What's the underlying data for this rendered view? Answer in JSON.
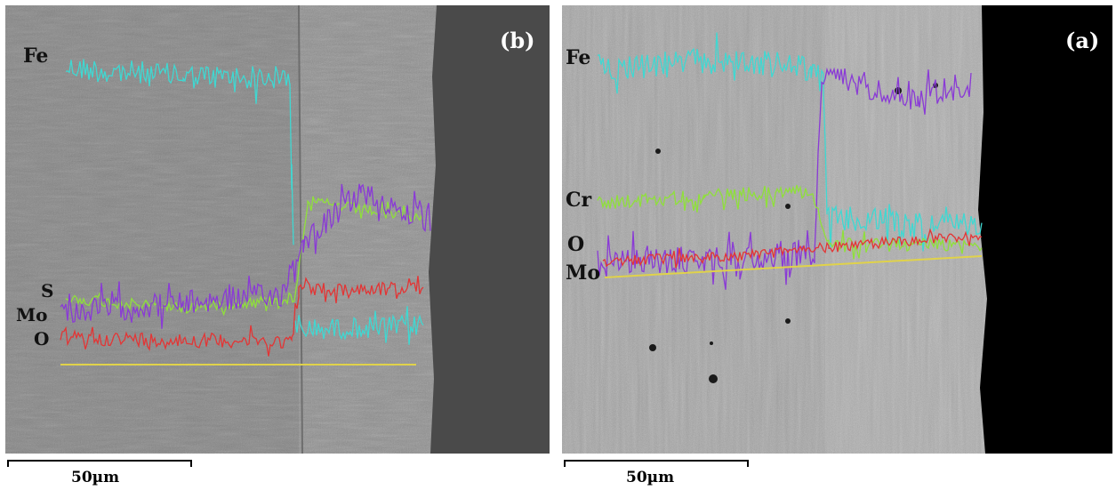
{
  "panels": {
    "b": {
      "letter": "(b)",
      "elements": {
        "fe": "Fe",
        "s": "S",
        "mo": "Mo",
        "o": "O"
      },
      "scale_label": "50µm"
    },
    "a": {
      "letter": "(a)",
      "elements": {
        "fe": "Fe",
        "cr": "Cr",
        "o": "O",
        "mo": "Mo"
      },
      "scale_label": "50µm"
    }
  },
  "colors": {
    "fe": "#3fd8d2",
    "mo": "#8a3ad6",
    "cr": "#8fe03a",
    "o": "#e33535",
    "baseline": "#e0d24a",
    "coating_b": "#4a4a4a",
    "coating_a": "#000000"
  }
}
